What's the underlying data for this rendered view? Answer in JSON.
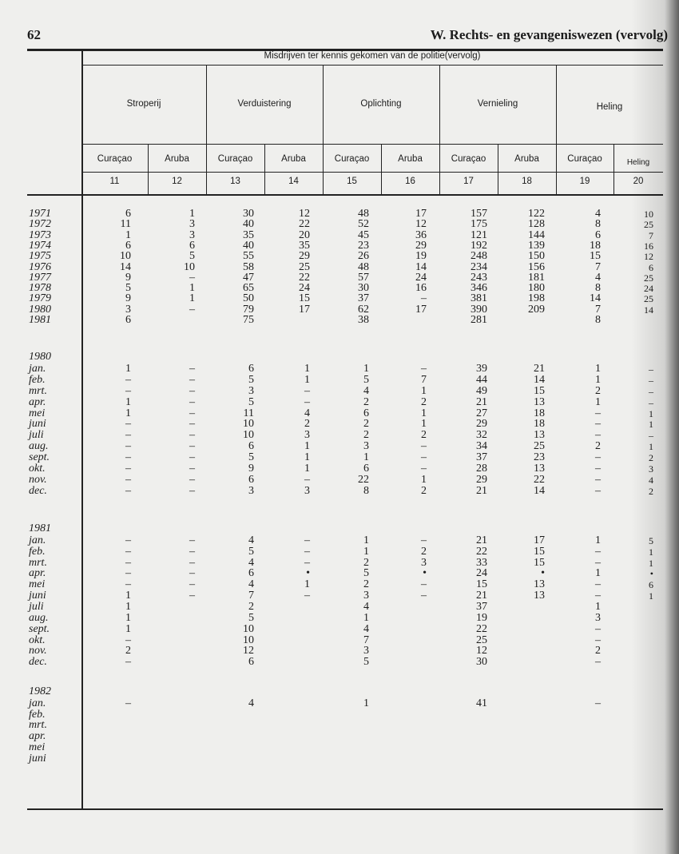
{
  "page": {
    "number": "62",
    "chapter_title": "W. Rechts- en gevangeniswezen (vervolg)"
  },
  "table": {
    "super_header": "Misdrijven ter kennis gekomen van de politie(vervolg)",
    "groups": [
      "Stroperij",
      "Verduistering",
      "Oplichting",
      "Vernieling",
      "Heling"
    ],
    "subheaders": [
      "Curaçao",
      "Aruba",
      "Curaçao",
      "Aruba",
      "Curaçao",
      "Aruba",
      "Curaçao",
      "Aruba",
      "Curaçao",
      "Heling"
    ],
    "column_numbers": [
      "11",
      "12",
      "13",
      "14",
      "15",
      "16",
      "17",
      "18",
      "19",
      "20"
    ],
    "sections": [
      {
        "title": "",
        "rows": [
          {
            "label": "1971",
            "values": [
              "6",
              "1",
              "30",
              "12",
              "48",
              "17",
              "157",
              "122",
              "4",
              "10"
            ]
          },
          {
            "label": "1972",
            "values": [
              "11",
              "3",
              "40",
              "22",
              "52",
              "12",
              "175",
              "128",
              "8",
              "25"
            ]
          },
          {
            "label": "1973",
            "values": [
              "1",
              "3",
              "35",
              "20",
              "45",
              "36",
              "121",
              "144",
              "6",
              "7"
            ]
          },
          {
            "label": "1974",
            "values": [
              "6",
              "6",
              "40",
              "35",
              "23",
              "29",
              "192",
              "139",
              "18",
              "16"
            ]
          },
          {
            "label": "1975",
            "values": [
              "10",
              "5",
              "55",
              "29",
              "26",
              "19",
              "248",
              "150",
              "15",
              "12"
            ]
          },
          {
            "label": "1976",
            "values": [
              "14",
              "10",
              "58",
              "25",
              "48",
              "14",
              "234",
              "156",
              "7",
              "6"
            ]
          },
          {
            "label": "1977",
            "values": [
              "9",
              "–",
              "47",
              "22",
              "57",
              "24",
              "243",
              "181",
              "4",
              "25"
            ]
          },
          {
            "label": "1978",
            "values": [
              "5",
              "1",
              "65",
              "24",
              "30",
              "16",
              "346",
              "180",
              "8",
              "24"
            ]
          },
          {
            "label": "1979",
            "values": [
              "9",
              "1",
              "50",
              "15",
              "37",
              "–",
              "381",
              "198",
              "14",
              "25"
            ]
          },
          {
            "label": "1980",
            "values": [
              "3",
              "–",
              "79",
              "17",
              "62",
              "17",
              "390",
              "209",
              "7",
              "14"
            ]
          },
          {
            "label": "1981",
            "values": [
              "6",
              "",
              "75",
              "",
              "38",
              "",
              "281",
              "",
              "8",
              ""
            ]
          }
        ]
      },
      {
        "title": "1980",
        "rows": [
          {
            "label": "jan.",
            "values": [
              "1",
              "–",
              "6",
              "1",
              "1",
              "–",
              "39",
              "21",
              "1",
              "–"
            ]
          },
          {
            "label": "feb.",
            "values": [
              "–",
              "–",
              "5",
              "1",
              "5",
              "7",
              "44",
              "14",
              "1",
              "–"
            ]
          },
          {
            "label": "mrt.",
            "values": [
              "–",
              "–",
              "3",
              "–",
              "4",
              "1",
              "49",
              "15",
              "2",
              "–"
            ]
          },
          {
            "label": "apr.",
            "values": [
              "1",
              "–",
              "5",
              "–",
              "2",
              "2",
              "21",
              "13",
              "1",
              "–"
            ]
          },
          {
            "label": "mei",
            "values": [
              "1",
              "–",
              "11",
              "4",
              "6",
              "1",
              "27",
              "18",
              "–",
              "1"
            ]
          },
          {
            "label": "juni",
            "values": [
              "–",
              "–",
              "10",
              "2",
              "2",
              "1",
              "29",
              "18",
              "–",
              "1"
            ]
          },
          {
            "label": "juli",
            "values": [
              "–",
              "–",
              "10",
              "3",
              "2",
              "2",
              "32",
              "13",
              "–",
              "–"
            ]
          },
          {
            "label": "aug.",
            "values": [
              "–",
              "–",
              "6",
              "1",
              "3",
              "–",
              "34",
              "25",
              "2",
              "1"
            ]
          },
          {
            "label": "sept.",
            "values": [
              "–",
              "–",
              "5",
              "1",
              "1",
              "–",
              "37",
              "23",
              "–",
              "2"
            ]
          },
          {
            "label": "okt.",
            "values": [
              "–",
              "–",
              "9",
              "1",
              "6",
              "–",
              "28",
              "13",
              "–",
              "3"
            ]
          },
          {
            "label": "nov.",
            "values": [
              "–",
              "–",
              "6",
              "–",
              "22",
              "1",
              "29",
              "22",
              "–",
              "4"
            ]
          },
          {
            "label": "dec.",
            "values": [
              "–",
              "–",
              "3",
              "3",
              "8",
              "2",
              "21",
              "14",
              "–",
              "2"
            ]
          }
        ]
      },
      {
        "title": "1981",
        "rows": [
          {
            "label": "jan.",
            "values": [
              "–",
              "–",
              "4",
              "–",
              "1",
              "–",
              "21",
              "17",
              "1",
              "5"
            ]
          },
          {
            "label": "feb.",
            "values": [
              "–",
              "–",
              "5",
              "–",
              "1",
              "2",
              "22",
              "15",
              "–",
              "1"
            ]
          },
          {
            "label": "mrt.",
            "values": [
              "–",
              "–",
              "4",
              "–",
              "2",
              "3",
              "33",
              "15",
              "–",
              "1"
            ]
          },
          {
            "label": "apr.",
            "values": [
              "–",
              "–",
              "6",
              "•",
              "5",
              "•",
              "24",
              "•",
              "1",
              "•"
            ]
          },
          {
            "label": "mei",
            "values": [
              "–",
              "–",
              "4",
              "1",
              "2",
              "–",
              "15",
              "13",
              "–",
              "6"
            ]
          },
          {
            "label": "juni",
            "values": [
              "1",
              "–",
              "7",
              "–",
              "3",
              "–",
              "21",
              "13",
              "–",
              "1"
            ]
          },
          {
            "label": "juli",
            "values": [
              "1",
              "",
              "2",
              "",
              "4",
              "",
              "37",
              "",
              "1",
              ""
            ]
          },
          {
            "label": "aug.",
            "values": [
              "1",
              "",
              "5",
              "",
              "1",
              "",
              "19",
              "",
              "3",
              ""
            ]
          },
          {
            "label": "sept.",
            "values": [
              "1",
              "",
              "10",
              "",
              "4",
              "",
              "22",
              "",
              "–",
              ""
            ]
          },
          {
            "label": "okt.",
            "values": [
              "–",
              "",
              "10",
              "",
              "7",
              "",
              "25",
              "",
              "–",
              ""
            ]
          },
          {
            "label": "nov.",
            "values": [
              "2",
              "",
              "12",
              "",
              "3",
              "",
              "12",
              "",
              "2",
              ""
            ]
          },
          {
            "label": "dec.",
            "values": [
              "–",
              "",
              "6",
              "",
              "5",
              "",
              "30",
              "",
              "–",
              ""
            ]
          }
        ]
      },
      {
        "title": "1982",
        "rows": [
          {
            "label": "jan.",
            "values": [
              "–",
              "",
              "4",
              "",
              "1",
              "",
              "41",
              "",
              "–",
              ""
            ]
          },
          {
            "label": "feb.",
            "values": [
              "",
              "",
              "",
              "",
              "",
              "",
              "",
              "",
              "",
              ""
            ]
          },
          {
            "label": "mrt.",
            "values": [
              "",
              "",
              "",
              "",
              "",
              "",
              "",
              "",
              "",
              ""
            ]
          },
          {
            "label": "apr.",
            "values": [
              "",
              "",
              "",
              "",
              "",
              "",
              "",
              "",
              "",
              ""
            ]
          },
          {
            "label": "mei",
            "values": [
              "",
              "",
              "",
              "",
              "",
              "",
              "",
              "",
              "",
              ""
            ]
          },
          {
            "label": "juni",
            "values": [
              "",
              "",
              "",
              "",
              "",
              "",
              "",
              "",
              "",
              ""
            ]
          }
        ]
      }
    ]
  }
}
